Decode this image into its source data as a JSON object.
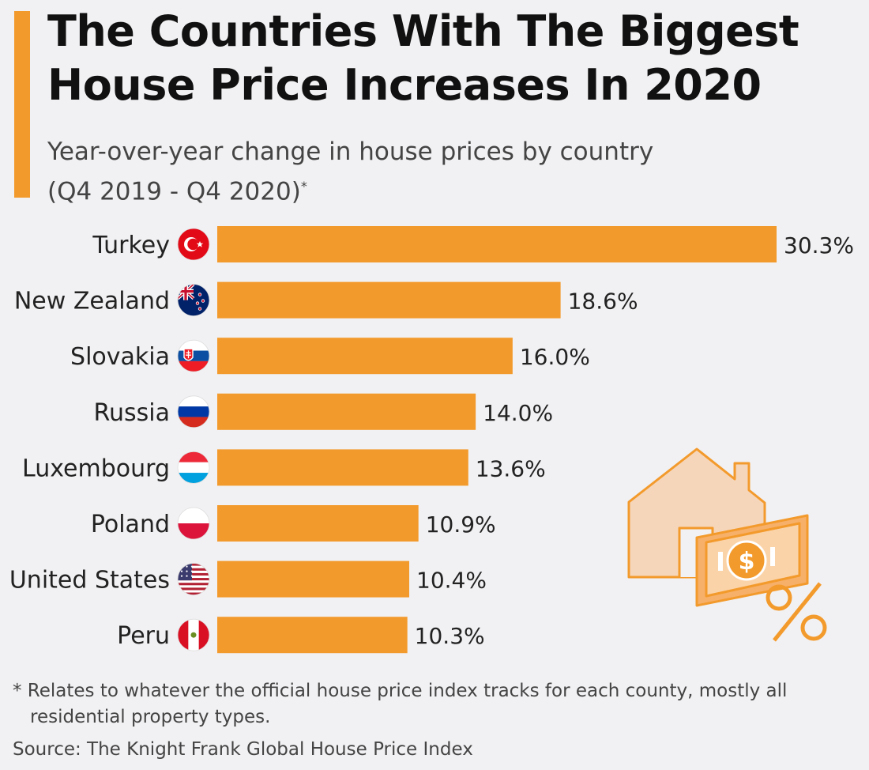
{
  "title": "The Countries With The Biggest House Price Increases In 2020",
  "subtitle_line1": "Year-over-year change in house prices by country",
  "subtitle_line2": "(Q4 2019 - Q4 2020)",
  "subtitle_marker": "*",
  "footnote": "* Relates to whatever the official house price index tracks for each county, mostly all residential property types.",
  "source": "Source: The Knight Frank Global House Price Index",
  "colors": {
    "accent": "#f39a2c",
    "bar": "#f39a2c",
    "text": "#111111"
  },
  "chart_data": {
    "type": "bar",
    "orientation": "horizontal",
    "categories": [
      "Turkey",
      "New Zealand",
      "Slovakia",
      "Russia",
      "Luxembourg",
      "Poland",
      "United States",
      "Peru"
    ],
    "values": [
      30.3,
      18.6,
      16.0,
      14.0,
      13.6,
      10.9,
      10.4,
      10.3
    ],
    "value_labels": [
      "30.3%",
      "18.6%",
      "16.0%",
      "14.0%",
      "13.6%",
      "10.9%",
      "10.4%",
      "10.3%"
    ],
    "flags": [
      "turkey-flag-icon",
      "new-zealand-flag-icon",
      "slovakia-flag-icon",
      "russia-flag-icon",
      "luxembourg-flag-icon",
      "poland-flag-icon",
      "united-states-flag-icon",
      "peru-flag-icon"
    ],
    "xlim": [
      0,
      30.3
    ],
    "grid": false,
    "legend": false
  }
}
